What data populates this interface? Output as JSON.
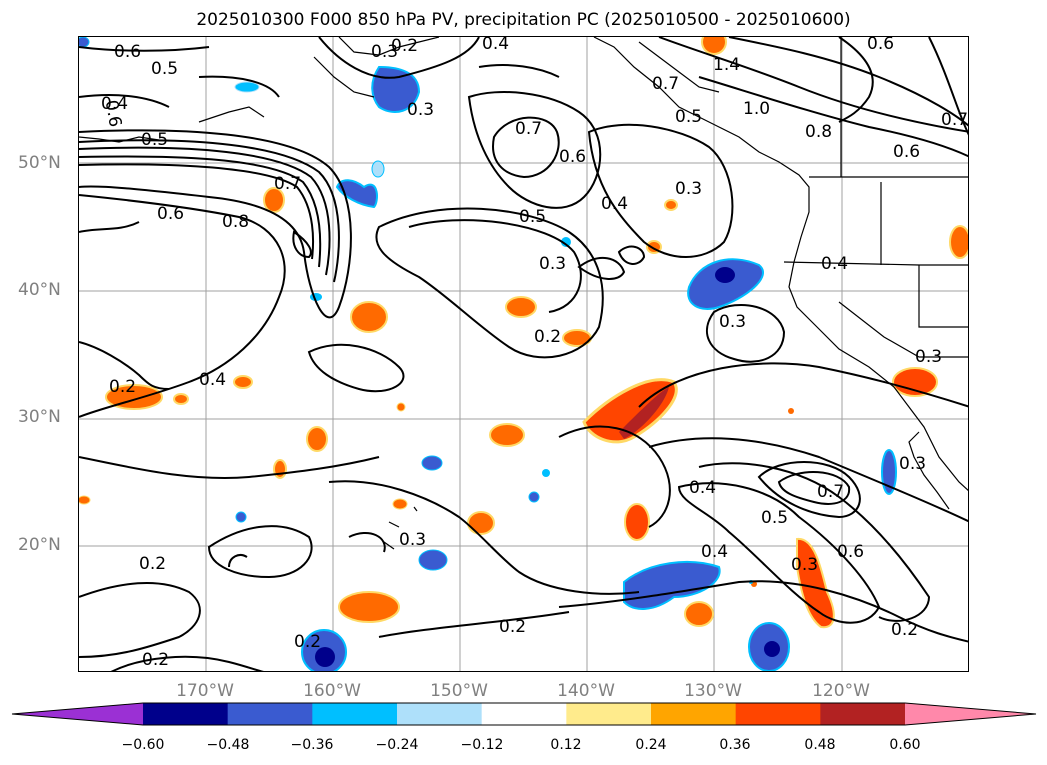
{
  "title": "2025010300 F000 850 hPa PV, precipitation PC (2025010500 - 2025010600)",
  "map": {
    "lat_labels": [
      "50°N",
      "40°N",
      "30°N",
      "20°N"
    ],
    "lon_labels": [
      "170°W",
      "160°W",
      "150°W",
      "140°W",
      "130°W",
      "120°W"
    ],
    "gridlines": true,
    "contour_labels": [
      "0.6",
      "0.5",
      "0.4",
      "0.5",
      "0.7",
      "0.8",
      "0.6",
      "0.4",
      "0.2",
      "0.2",
      "0.3",
      "0.7",
      "0.6",
      "0.5",
      "0.3",
      "0.2",
      "0.3",
      "0.4",
      "0.7",
      "0.5",
      "0.3",
      "0.4",
      "0.3",
      "1.4",
      "1.0",
      "0.8",
      "0.6",
      "0.7",
      "0.4",
      "0.3",
      "0.3",
      "0.4",
      "0.5",
      "0.6",
      "0.7",
      "0.3",
      "0.2",
      "0.3",
      "0.2",
      "0.2",
      "0.2",
      "0.6",
      "0.6",
      "0.2",
      "0.4"
    ]
  },
  "colorbar": {
    "ticks": [
      "−0.60",
      "−0.48",
      "−0.36",
      "−0.24",
      "−0.12",
      "0.12",
      "0.24",
      "0.36",
      "0.48",
      "0.60"
    ],
    "colors": [
      "#9b30d4",
      "#00008b",
      "#3a5bd0",
      "#00bfff",
      "#aee0fa",
      "#ffffff",
      "#ffeb8c",
      "#ffa500",
      "#ff4500",
      "#b22222",
      "#ff88aa"
    ],
    "extend": "both"
  }
}
